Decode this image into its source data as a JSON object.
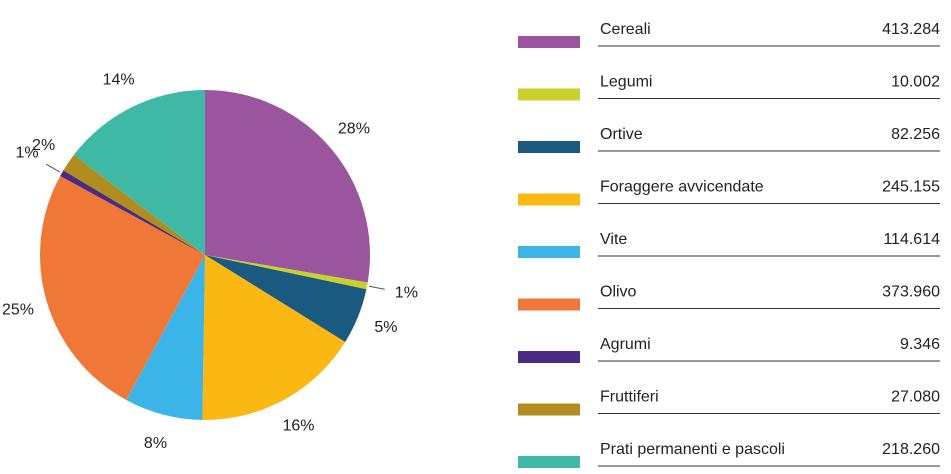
{
  "chart_data": {
    "type": "pie",
    "categories": [
      "Cereali",
      "Legumi",
      "Ortive",
      "Foraggere avvicendate",
      "Vite",
      "Olivo",
      "Agrumi",
      "Fruttiferi",
      "Prati permanenti e pascoli"
    ],
    "values": [
      413284,
      10002,
      82256,
      245155,
      114614,
      373960,
      9346,
      27080,
      218260
    ],
    "value_labels": [
      "413.284",
      "10.002",
      "82.256",
      "245.155",
      "114.614",
      "373.960",
      "9.346",
      "27.080",
      "218.260"
    ],
    "percent_labels": [
      "28%",
      "1%",
      "5%",
      "16%",
      "8%",
      "25%",
      "1%",
      "2%",
      "14%"
    ],
    "colors": [
      "#9b559e",
      "#c8d22a",
      "#1a5a80",
      "#fbb812",
      "#3bb4e8",
      "#ef7838",
      "#4b2c84",
      "#b08d1e",
      "#3fb8a6"
    ]
  }
}
